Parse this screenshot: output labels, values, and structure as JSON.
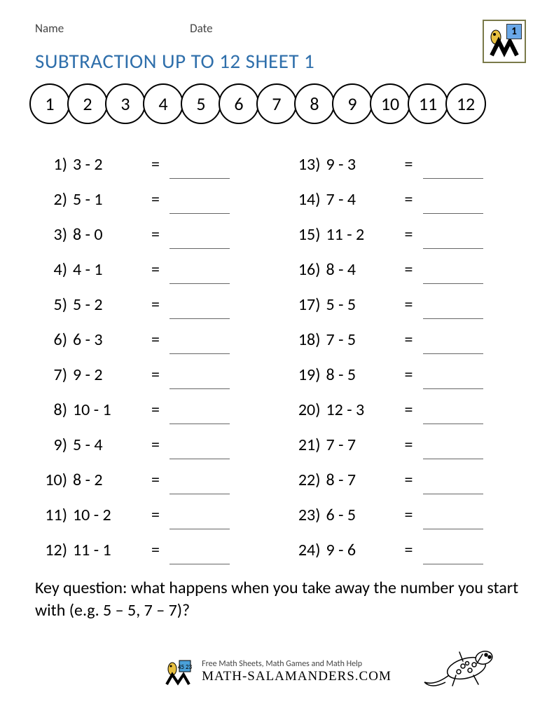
{
  "header": {
    "name_label": "Name",
    "date_label": "Date"
  },
  "logo": {
    "grade": "1"
  },
  "title": "SUBTRACTION UP TO 12 SHEET 1",
  "number_strip": [
    "1",
    "2",
    "3",
    "4",
    "5",
    "6",
    "7",
    "8",
    "9",
    "10",
    "11",
    "12"
  ],
  "columns": {
    "left": [
      {
        "n": "1)",
        "expr": "3 - 2"
      },
      {
        "n": "2)",
        "expr": "5 - 1"
      },
      {
        "n": "3)",
        "expr": "8 - 0"
      },
      {
        "n": "4)",
        "expr": "4 - 1"
      },
      {
        "n": "5)",
        "expr": "5 - 2"
      },
      {
        "n": "6)",
        "expr": "6 - 3"
      },
      {
        "n": "7)",
        "expr": "9 - 2"
      },
      {
        "n": "8)",
        "expr": "10 - 1"
      },
      {
        "n": "9)",
        "expr": "5 - 4"
      },
      {
        "n": "10)",
        "expr": "8 - 2"
      },
      {
        "n": "11)",
        "expr": "10 - 2"
      },
      {
        "n": "12)",
        "expr": "11 - 1"
      }
    ],
    "right": [
      {
        "n": "13)",
        "expr": "9 - 3"
      },
      {
        "n": "14)",
        "expr": "7 - 4"
      },
      {
        "n": "15)",
        "expr": "11 - 2"
      },
      {
        "n": "16)",
        "expr": "8 - 4"
      },
      {
        "n": "17)",
        "expr": "5 - 5"
      },
      {
        "n": "18)",
        "expr": "7 - 5"
      },
      {
        "n": "19)",
        "expr": "8 - 5"
      },
      {
        "n": "20)",
        "expr": "12 - 3"
      },
      {
        "n": "21)",
        "expr": "7 - 7"
      },
      {
        "n": "22)",
        "expr": "8 - 7"
      },
      {
        "n": "23)",
        "expr": "6 - 5"
      },
      {
        "n": "24)",
        "expr": "9 - 6"
      }
    ]
  },
  "equals_sign": "=",
  "key_question": "Key question: what happens when you take away the number you start with (e.g. 5 – 5, 7 – 7)?",
  "footer": {
    "tagline": "Free Math Sheets, Math Games and Math Help",
    "url": "MATH-SALAMANDERS.COM"
  },
  "colors": {
    "title": "#2f6fab",
    "text": "#000000",
    "blank_line": "#666666",
    "ball_border": "#000000",
    "logo_border": "#7a7a4a",
    "grade_bg": "#6aa8e8"
  }
}
